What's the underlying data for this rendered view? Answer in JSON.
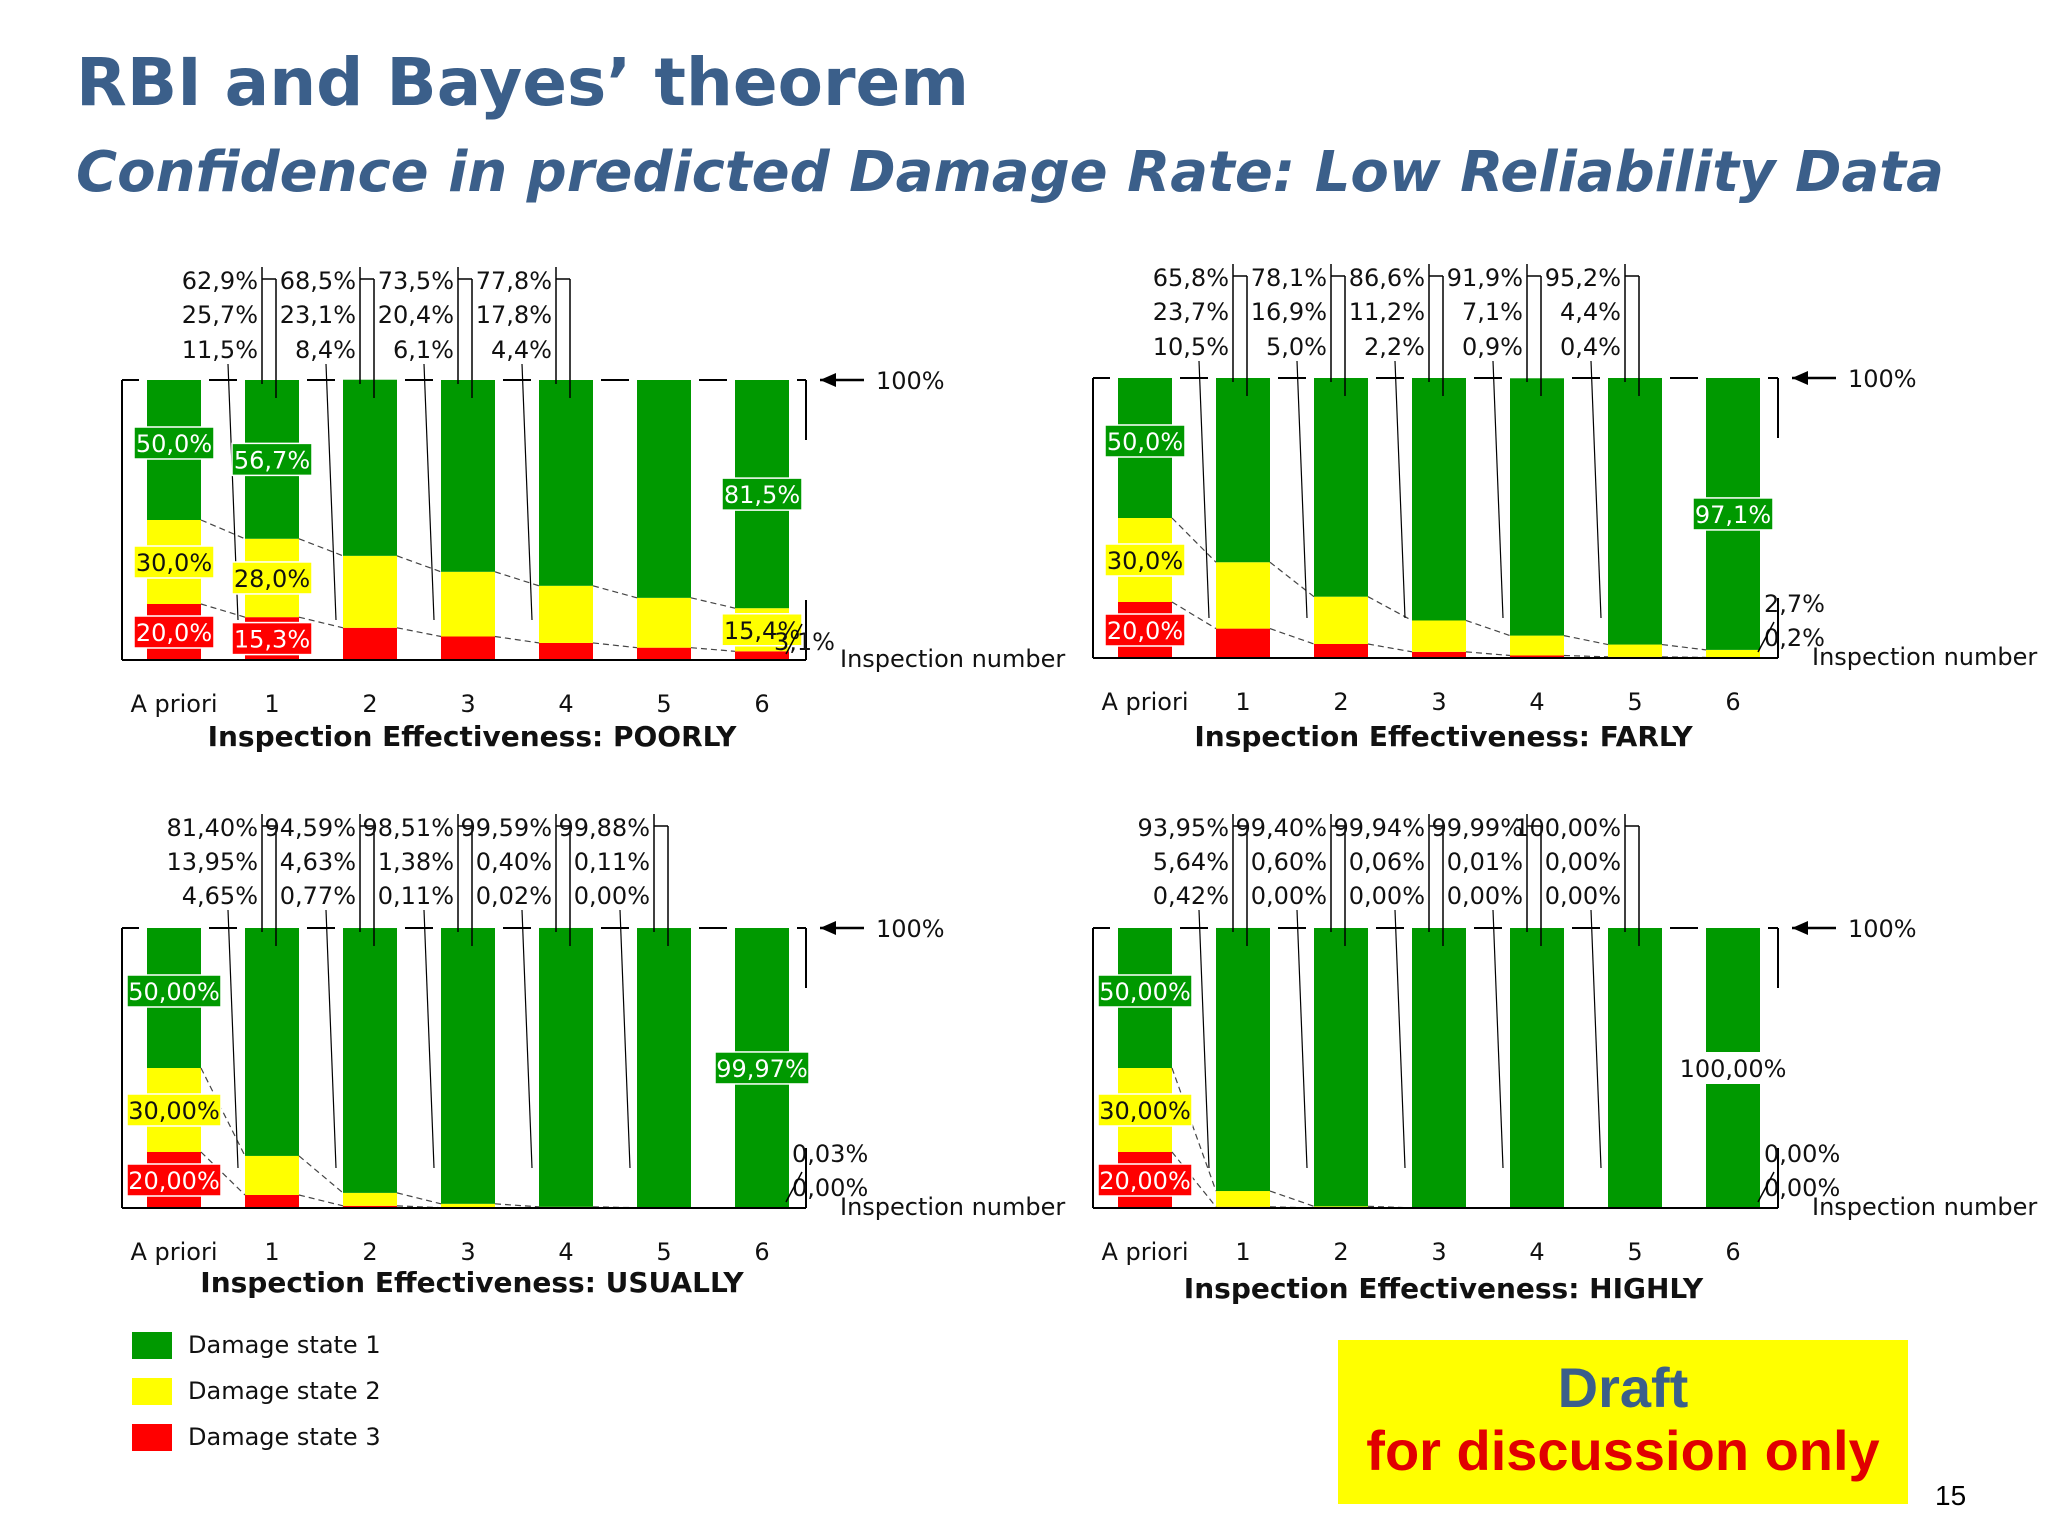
{
  "header": {
    "title": "RBI and Bayes’ theorem",
    "subtitle": "Confidence in predicted Damage Rate: Low Reliability Data"
  },
  "colors": {
    "state1": "#009900",
    "state2": "#ffff00",
    "state3": "#ff0000",
    "title": "#3b5f8a"
  },
  "chart_data": [
    {
      "type": "bar",
      "stacked": true,
      "title": "Inspection Effectiveness: POORLY",
      "categories": [
        "A priori",
        "1",
        "2",
        "3",
        "4",
        "5",
        "6"
      ],
      "xlabel": "Inspection number",
      "ylabel": "",
      "ylim": [
        0,
        100
      ],
      "top_marker": "100%",
      "series": [
        {
          "name": "Damage state 1",
          "values": [
            50.0,
            56.7,
            62.9,
            68.5,
            73.5,
            77.8,
            81.5
          ]
        },
        {
          "name": "Damage state 2",
          "values": [
            30.0,
            28.0,
            25.7,
            23.1,
            20.4,
            17.8,
            15.4
          ]
        },
        {
          "name": "Damage state 3",
          "values": [
            20.0,
            15.3,
            11.5,
            8.4,
            6.1,
            4.4,
            3.1
          ]
        }
      ],
      "top_labels": [
        [
          "62,9%",
          "25,7%",
          "11,5%"
        ],
        [
          "68,5%",
          "23,1%",
          "8,4%"
        ],
        [
          "73,5%",
          "20,4%",
          "6,1%"
        ],
        [
          "77,8%",
          "17,8%",
          "4,4%"
        ]
      ],
      "inbar_labels": [
        {
          "bar": 0,
          "state": 1,
          "text": "50,0%"
        },
        {
          "bar": 0,
          "state": 2,
          "text": "30,0%"
        },
        {
          "bar": 0,
          "state": 3,
          "text": "20,0%"
        },
        {
          "bar": 1,
          "state": 1,
          "text": "56,7%"
        },
        {
          "bar": 1,
          "state": 2,
          "text": "28,0%"
        },
        {
          "bar": 1,
          "state": 3,
          "text": "15,3%"
        },
        {
          "bar": 6,
          "state": 1,
          "text": "81,5%"
        },
        {
          "bar": 6,
          "state": 2,
          "text": "15,4%"
        }
      ],
      "side_labels": [
        "3,1%"
      ]
    },
    {
      "type": "bar",
      "stacked": true,
      "title": "Inspection Effectiveness: FARLY",
      "categories": [
        "A priori",
        "1",
        "2",
        "3",
        "4",
        "5",
        "6"
      ],
      "xlabel": "Inspection number",
      "ylabel": "",
      "ylim": [
        0,
        100
      ],
      "top_marker": "100%",
      "series": [
        {
          "name": "Damage state 1",
          "values": [
            50.0,
            65.8,
            78.1,
            86.6,
            91.9,
            95.2,
            97.1
          ]
        },
        {
          "name": "Damage state 2",
          "values": [
            30.0,
            23.7,
            16.9,
            11.2,
            7.1,
            4.4,
            2.7
          ]
        },
        {
          "name": "Damage state 3",
          "values": [
            20.0,
            10.5,
            5.0,
            2.2,
            0.9,
            0.4,
            0.2
          ]
        }
      ],
      "top_labels": [
        [
          "65,8%",
          "23,7%",
          "10,5%"
        ],
        [
          "78,1%",
          "16,9%",
          "5,0%"
        ],
        [
          "86,6%",
          "11,2%",
          "2,2%"
        ],
        [
          "91,9%",
          "7,1%",
          "0,9%"
        ],
        [
          "95,2%",
          "4,4%",
          "0,4%"
        ]
      ],
      "inbar_labels": [
        {
          "bar": 0,
          "state": 1,
          "text": "50,0%"
        },
        {
          "bar": 0,
          "state": 2,
          "text": "30,0%"
        },
        {
          "bar": 0,
          "state": 3,
          "text": "20,0%"
        },
        {
          "bar": 6,
          "state": 1,
          "text": "97,1%"
        }
      ],
      "side_labels": [
        "2,7%",
        "0,2%"
      ]
    },
    {
      "type": "bar",
      "stacked": true,
      "title": "Inspection Effectiveness: USUALLY",
      "categories": [
        "A priori",
        "1",
        "2",
        "3",
        "4",
        "5",
        "6"
      ],
      "xlabel": "Inspection number",
      "ylabel": "",
      "ylim": [
        0,
        100
      ],
      "top_marker": "100%",
      "series": [
        {
          "name": "Damage state 1",
          "values": [
            50.0,
            81.4,
            94.59,
            98.51,
            99.59,
            99.88,
            99.97
          ]
        },
        {
          "name": "Damage state 2",
          "values": [
            30.0,
            13.95,
            4.63,
            1.38,
            0.4,
            0.11,
            0.03
          ]
        },
        {
          "name": "Damage state 3",
          "values": [
            20.0,
            4.65,
            0.77,
            0.11,
            0.02,
            0.0,
            0.0
          ]
        }
      ],
      "top_labels": [
        [
          "81,40%",
          "13,95%",
          "4,65%"
        ],
        [
          "94,59%",
          "4,63%",
          "0,77%"
        ],
        [
          "98,51%",
          "1,38%",
          "0,11%"
        ],
        [
          "99,59%",
          "0,40%",
          "0,02%"
        ],
        [
          "99,88%",
          "0,11%",
          "0,00%"
        ]
      ],
      "inbar_labels": [
        {
          "bar": 0,
          "state": 1,
          "text": "50,00%"
        },
        {
          "bar": 0,
          "state": 2,
          "text": "30,00%"
        },
        {
          "bar": 0,
          "state": 3,
          "text": "20,00%"
        },
        {
          "bar": 6,
          "state": 1,
          "text": "99,97%"
        }
      ],
      "side_labels": [
        "0,03%",
        "0,00%"
      ]
    },
    {
      "type": "bar",
      "stacked": true,
      "title": "Inspection Effectiveness: HIGHLY",
      "categories": [
        "A priori",
        "1",
        "2",
        "3",
        "4",
        "5",
        "6"
      ],
      "xlabel": "Inspection number",
      "ylabel": "",
      "ylim": [
        0,
        100
      ],
      "top_marker": "100%",
      "series": [
        {
          "name": "Damage state 1",
          "values": [
            50.0,
            93.95,
            99.4,
            99.94,
            99.99,
            100.0,
            100.0
          ]
        },
        {
          "name": "Damage state 2",
          "values": [
            30.0,
            5.64,
            0.6,
            0.06,
            0.01,
            0.0,
            0.0
          ]
        },
        {
          "name": "Damage state 3",
          "values": [
            20.0,
            0.42,
            0.0,
            0.0,
            0.0,
            0.0,
            0.0
          ]
        }
      ],
      "top_labels": [
        [
          "93,95%",
          "5,64%",
          "0,42%"
        ],
        [
          "99,40%",
          "0,60%",
          "0,00%"
        ],
        [
          "99,94%",
          "0,06%",
          "0,00%"
        ],
        [
          "99,99%",
          "0,01%",
          "0,00%"
        ],
        [
          "100,00%",
          "0,00%",
          "0,00%"
        ]
      ],
      "inbar_labels": [
        {
          "bar": 0,
          "state": 1,
          "text": "50,00%"
        },
        {
          "bar": 0,
          "state": 2,
          "text": "30,00%"
        },
        {
          "bar": 0,
          "state": 3,
          "text": "20,00%"
        },
        {
          "bar": 6,
          "state": 1,
          "text": "100,00%"
        }
      ],
      "side_labels": [
        "0,00%",
        "0,00%"
      ]
    }
  ],
  "legend": [
    {
      "label": "Damage state 1",
      "color": "#009900"
    },
    {
      "label": "Damage state 2",
      "color": "#ffff00"
    },
    {
      "label": "Damage state 3",
      "color": "#ff0000"
    }
  ],
  "draft": {
    "title": "Draft",
    "subtitle": "for discussion only"
  },
  "page_number": "15"
}
